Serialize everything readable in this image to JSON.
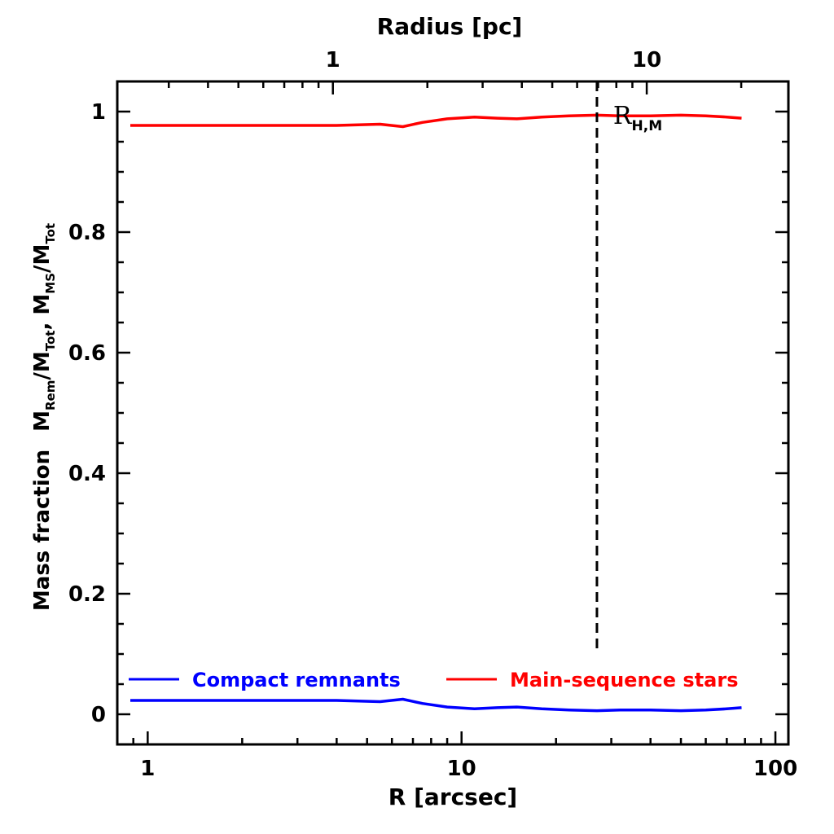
{
  "chart_data": {
    "type": "line",
    "xlabel": "R [arcsec]",
    "x2label": "Radius [pc]",
    "ylabel_main": "Mass fraction",
    "ylabel_rem": {
      "base": "M",
      "sub": "Rem",
      "over": "/M",
      "over_sub": "Tot"
    },
    "ylabel_ms": {
      "base": "M",
      "sub": "MS",
      "over": "/M",
      "over_sub": "Tot"
    },
    "xscale": "log",
    "xlim": [
      0.8,
      110
    ],
    "ylim": [
      -0.05,
      1.05
    ],
    "x_ticks": [
      1,
      10,
      100
    ],
    "x_tick_labels": [
      "1",
      "10",
      "100"
    ],
    "y_ticks": [
      0,
      0.2,
      0.4,
      0.6,
      0.8,
      1
    ],
    "y_tick_labels": [
      "0",
      "0.2",
      "0.4",
      "0.6",
      "0.8",
      "1"
    ],
    "x2_scale": {
      "pc_per_arcsec": 0.257
    },
    "x2_ticks": [
      1,
      10
    ],
    "x2_tick_labels": [
      "1",
      "10"
    ],
    "series": [
      {
        "name": "Compact remnants",
        "color": "#0000ff",
        "x": [
          0.88,
          1.5,
          2.5,
          4,
          5.5,
          6.5,
          7.5,
          9,
          11,
          13,
          15,
          18,
          22,
          27,
          32,
          40,
          50,
          60,
          70,
          78
        ],
        "y": [
          0.023,
          0.023,
          0.023,
          0.023,
          0.021,
          0.025,
          0.018,
          0.012,
          0.009,
          0.011,
          0.012,
          0.009,
          0.007,
          0.006,
          0.007,
          0.007,
          0.006,
          0.007,
          0.009,
          0.011
        ]
      },
      {
        "name": "Main-sequence stars",
        "color": "#ff0000",
        "x": [
          0.88,
          1.5,
          2.5,
          4,
          5.5,
          6.5,
          7.5,
          9,
          11,
          13,
          15,
          18,
          22,
          27,
          32,
          40,
          50,
          60,
          70,
          78
        ],
        "y": [
          0.977,
          0.977,
          0.977,
          0.977,
          0.979,
          0.975,
          0.982,
          0.988,
          0.991,
          0.989,
          0.988,
          0.991,
          0.993,
          0.994,
          0.993,
          0.993,
          0.994,
          0.993,
          0.991,
          0.989
        ]
      }
    ],
    "vline": {
      "x": 27,
      "ymin": 0.1,
      "style": "dashed",
      "color": "#000000"
    },
    "annotation": {
      "text": "R",
      "sub": "H,M"
    },
    "legend": {
      "placement": "bottom"
    }
  }
}
